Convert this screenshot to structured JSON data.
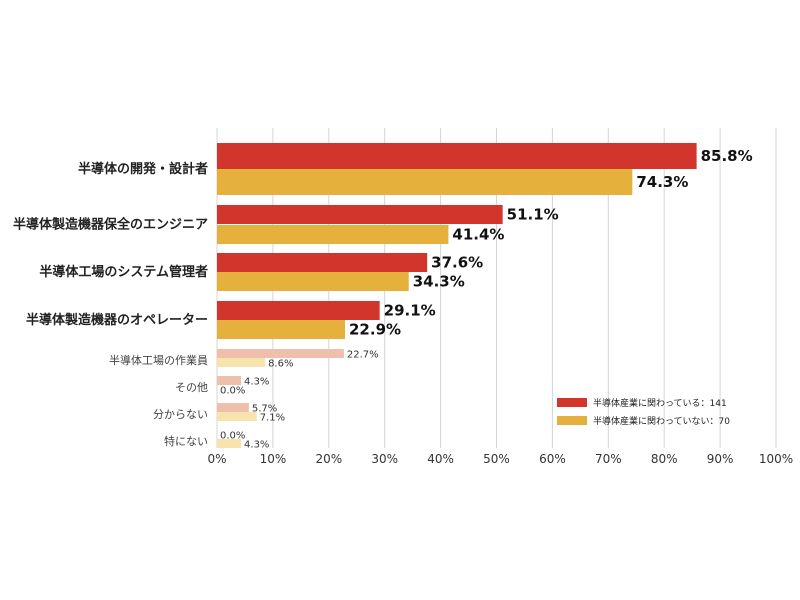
{
  "chart_data": {
    "type": "bar",
    "orientation": "horizontal",
    "categories": [
      "半導体の開発・設計者",
      "半導体製造機器保全のエンジニア",
      "半導体工場のシステム管理者",
      "半導体製造機器のオペレーター",
      "半導体工場の作業員",
      "その他",
      "分からない",
      "特にない"
    ],
    "emphasized_categories": 4,
    "series": [
      {
        "name": "半導体産業に関わっている：141",
        "values": [
          85.8,
          51.1,
          37.6,
          29.1,
          22.7,
          4.3,
          5.7,
          0.0
        ],
        "color": "#d2352b",
        "color_light": "#eebfaa"
      },
      {
        "name": "半導体産業に関わっていない：70",
        "values": [
          74.3,
          41.4,
          34.3,
          22.9,
          8.6,
          0.0,
          7.1,
          4.3
        ],
        "color": "#e6b03c",
        "color_light": "#f6e3ad"
      }
    ],
    "value_labels": [
      [
        "85.8%",
        "51.1%",
        "37.6%",
        "29.1%",
        "22.7%",
        "4.3%",
        "5.7%",
        "0.0%"
      ],
      [
        "74.3%",
        "41.4%",
        "34.3%",
        "22.9%",
        "8.6%",
        "0.0%",
        "7.1%",
        "4.3%"
      ]
    ],
    "xlim": [
      0,
      100
    ],
    "x_ticks": [
      "0%",
      "10%",
      "20%",
      "30%",
      "40%",
      "50%",
      "60%",
      "70%",
      "80%",
      "90%",
      "100%"
    ],
    "grid": "vertical",
    "legend": "bottom-right"
  }
}
